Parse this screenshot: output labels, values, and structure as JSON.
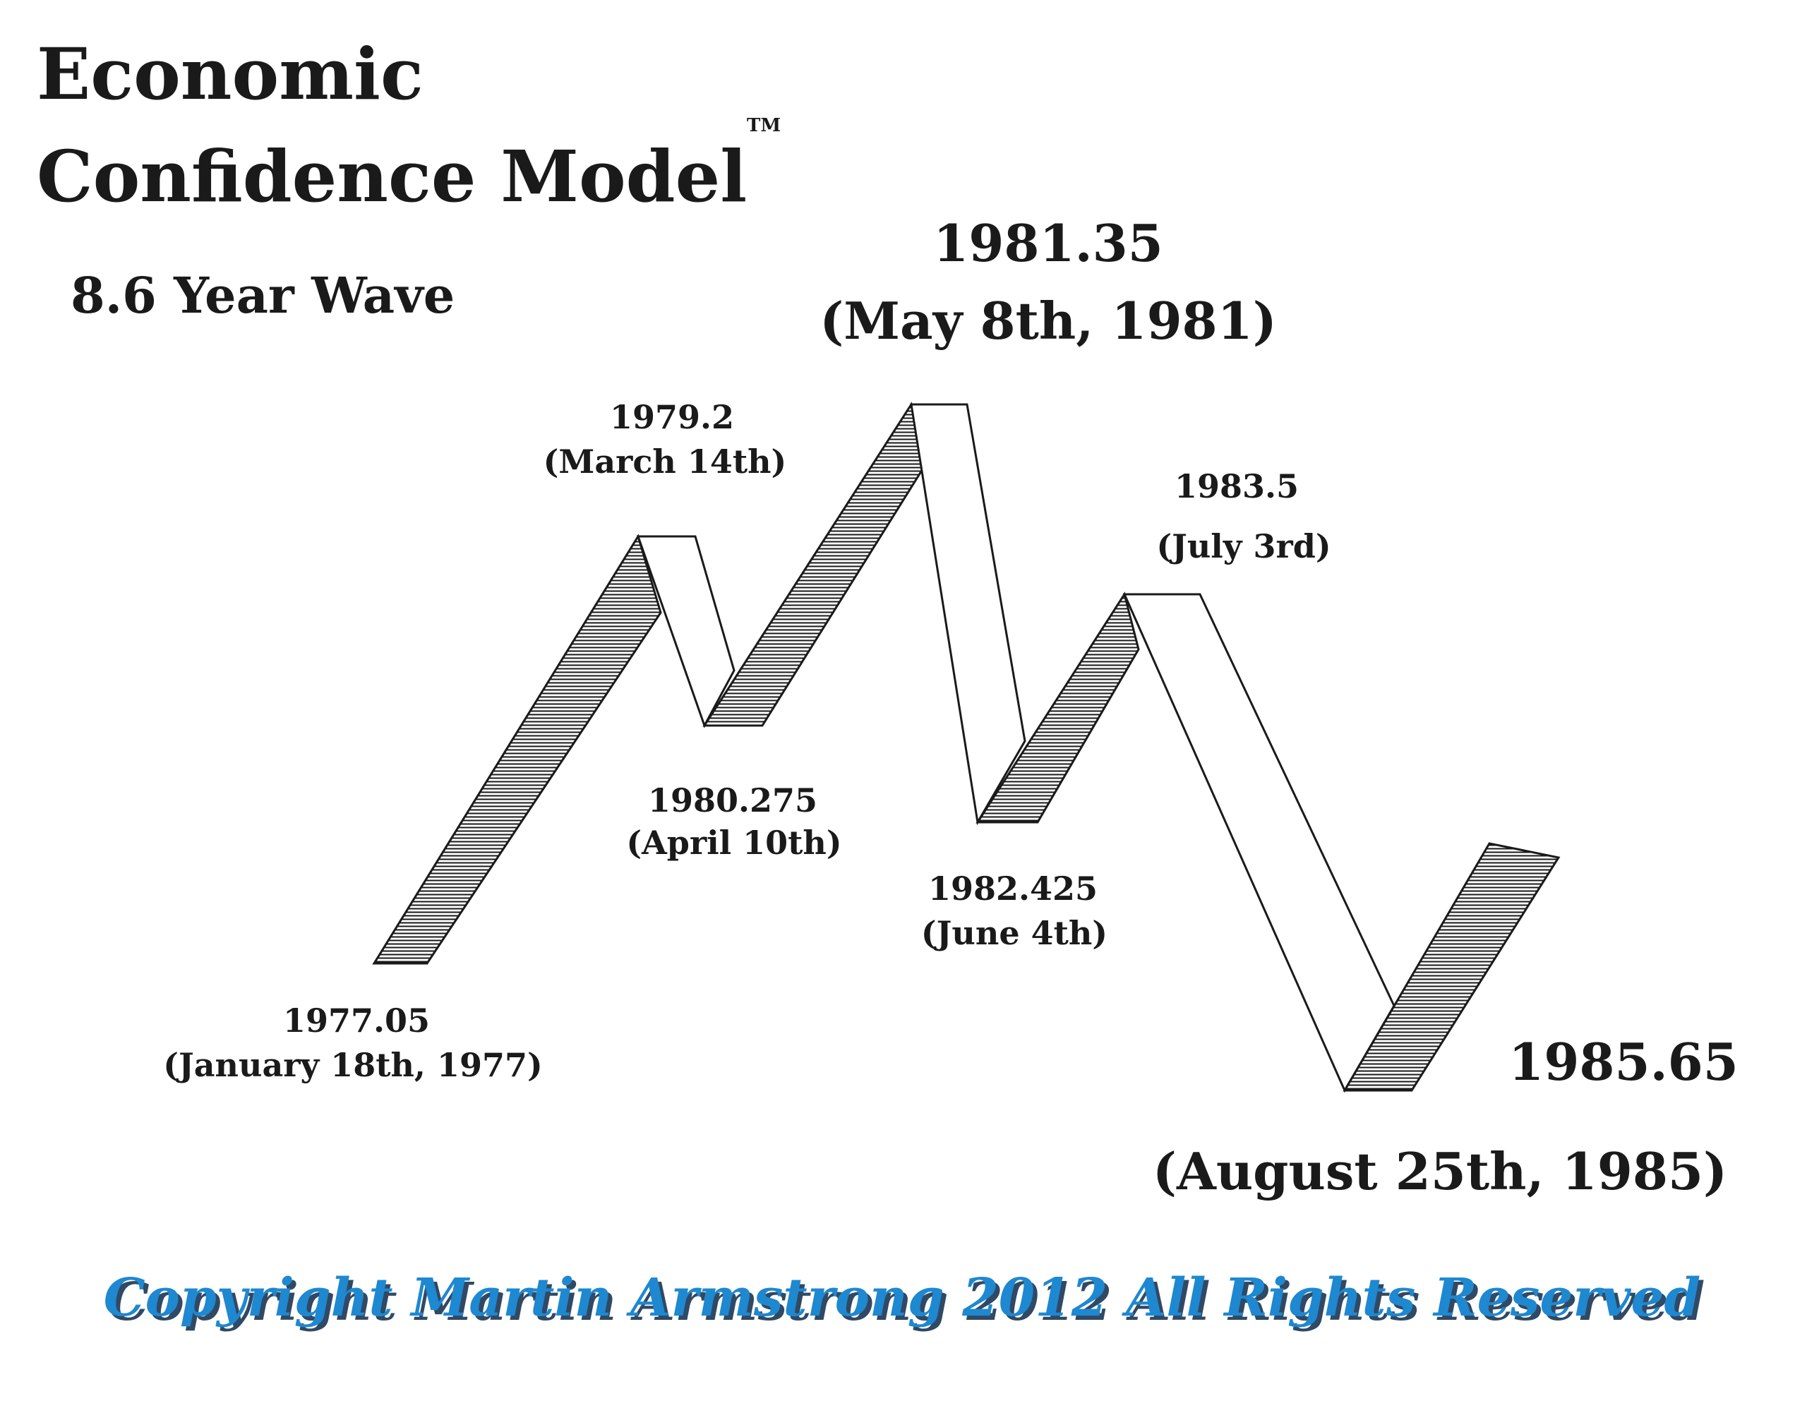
{
  "title_line1": "Economic",
  "title_line2": "Confidence Model",
  "trademark": "TM",
  "subtitle": "8.6 Year Wave",
  "copyright": "Copyright Martin Armstrong 2012 All Rights Reserved",
  "colors": {
    "ink": "#1a1a1a",
    "copyright_text": "#1e88d0",
    "copyright_shadow": "#0d2a4a"
  },
  "chart_data": {
    "type": "line",
    "style": "3d-ribbon zigzag wave, rising legs hatched, falling legs plain white",
    "title": "Economic Confidence Model",
    "subtitle": "8.6 Year Wave",
    "points": [
      {
        "x": 1977.05,
        "label": "1977.05",
        "date": "(January 18th, 1977)",
        "kind": "low"
      },
      {
        "x": 1979.2,
        "label": "1979.2",
        "date": "(March 14th)",
        "kind": "high"
      },
      {
        "x": 1980.275,
        "label": "1980.275",
        "date": "(April 10th)",
        "kind": "low"
      },
      {
        "x": 1981.35,
        "label": "1981.35",
        "date": "(May 8th, 1981)",
        "kind": "high"
      },
      {
        "x": 1982.425,
        "label": "1982.425",
        "date": "(June 4th)",
        "kind": "low"
      },
      {
        "x": 1983.5,
        "label": "1983.5",
        "date": "(July 3rd)",
        "kind": "high"
      },
      {
        "x": 1985.65,
        "label": "1985.65",
        "date": "(August 25th, 1985)",
        "kind": "low"
      }
    ]
  }
}
